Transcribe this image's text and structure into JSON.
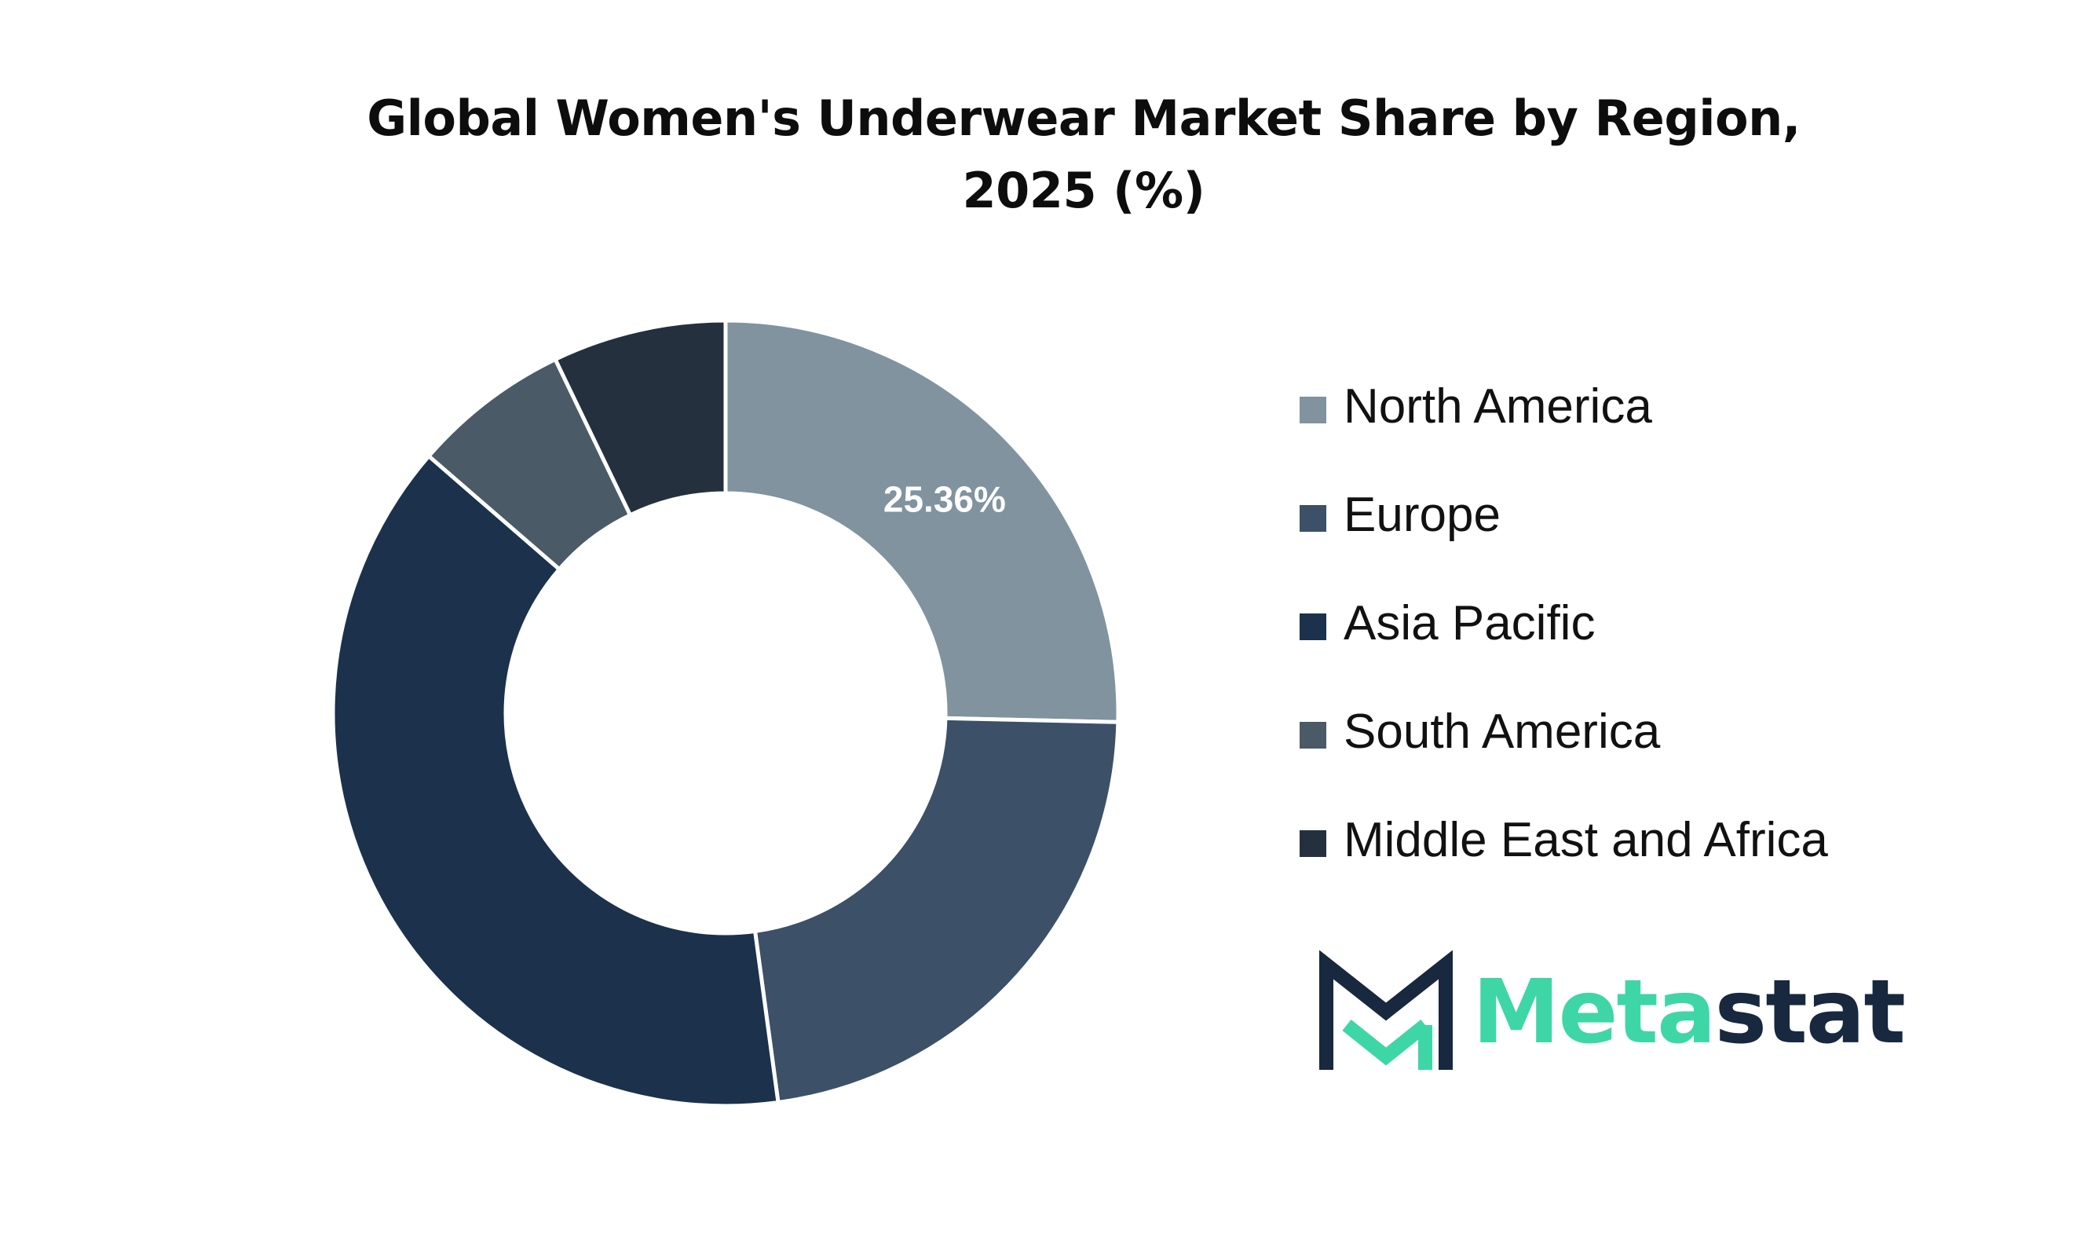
{
  "chart_data": {
    "type": "pie",
    "title_lines": [
      "Global Women's Underwear Market Share by Region,",
      "2025 (%)"
    ],
    "categories": [
      "North America",
      "Europe",
      "Asia Pacific",
      "South America",
      "Middle East and Africa"
    ],
    "values": [
      25.36,
      22.5,
      38.5,
      6.5,
      7.14
    ],
    "colors": [
      "#80939f",
      "#3c5068",
      "#1b314c",
      "#4a5a66",
      "#25303e"
    ],
    "data_labels": [
      "25.36%",
      "",
      "",
      "",
      ""
    ],
    "donut": true,
    "legend_position": "right"
  },
  "logo": {
    "text_primary": "Meta",
    "text_secondary": "stat",
    "primary_color": "#3fd6a6",
    "secondary_color": "#17283f"
  }
}
